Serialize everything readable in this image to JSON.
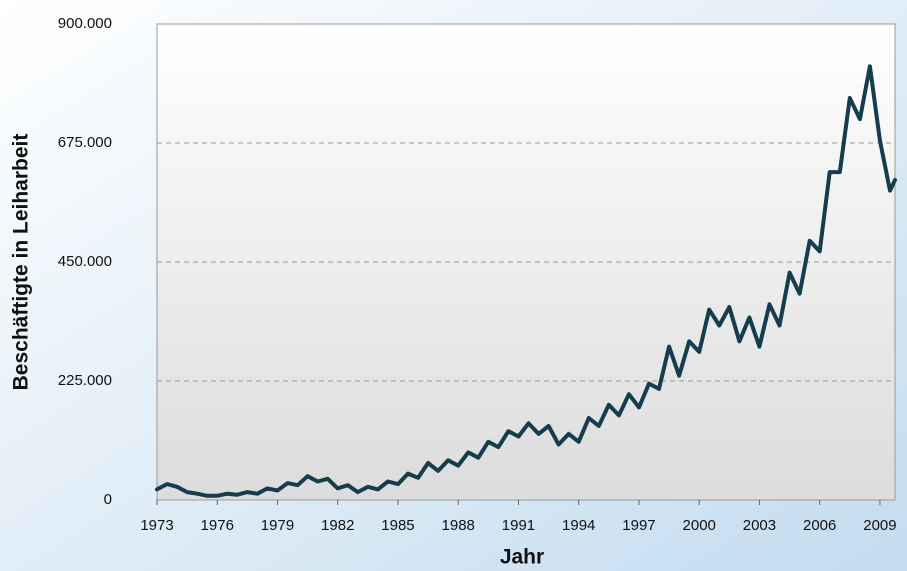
{
  "chart_data": {
    "type": "line",
    "x_label": "Jahr",
    "y_label": "Beschäftigte in Leiharbeit",
    "color": "#163d4d",
    "grid": true,
    "xlim": [
      1973,
      2009.75
    ],
    "xticks": [
      1973,
      1976,
      1979,
      1982,
      1985,
      1988,
      1991,
      1994,
      1997,
      2000,
      2003,
      2006,
      2009
    ],
    "ylim": [
      0,
      900000
    ],
    "yticks": [
      0,
      {
        "value": 225000,
        "label": "225.000"
      },
      {
        "value": 450000,
        "label": "450.000"
      },
      {
        "value": 675000,
        "label": "675.000"
      },
      {
        "value": 900000,
        "label": "900.000"
      }
    ],
    "x": [
      1973.0,
      1973.5,
      1974.0,
      1974.5,
      1975.0,
      1975.5,
      1976.0,
      1976.5,
      1977.0,
      1977.5,
      1978.0,
      1978.5,
      1979.0,
      1979.5,
      1980.0,
      1980.5,
      1981.0,
      1981.5,
      1982.0,
      1982.5,
      1983.0,
      1983.5,
      1984.0,
      1984.5,
      1985.0,
      1985.5,
      1986.0,
      1986.5,
      1987.0,
      1987.5,
      1988.0,
      1988.5,
      1989.0,
      1989.5,
      1990.0,
      1990.5,
      1991.0,
      1991.5,
      1992.0,
      1992.5,
      1993.0,
      1993.5,
      1994.0,
      1994.5,
      1995.0,
      1995.5,
      1996.0,
      1996.5,
      1997.0,
      1997.5,
      1998.0,
      1998.5,
      1999.0,
      1999.5,
      2000.0,
      2000.5,
      2001.0,
      2001.5,
      2002.0,
      2002.5,
      2003.0,
      2003.5,
      2004.0,
      2004.5,
      2005.0,
      2005.5,
      2006.0,
      2006.5,
      2007.0,
      2007.5,
      2008.0,
      2008.5,
      2009.0,
      2009.5,
      2009.75
    ],
    "values": [
      20000,
      30000,
      25000,
      15000,
      12000,
      8000,
      8000,
      12000,
      10000,
      15000,
      12000,
      22000,
      18000,
      32000,
      28000,
      45000,
      35000,
      40000,
      22000,
      28000,
      15000,
      25000,
      20000,
      35000,
      30000,
      50000,
      42000,
      70000,
      55000,
      75000,
      65000,
      90000,
      80000,
      110000,
      100000,
      130000,
      120000,
      145000,
      125000,
      140000,
      105000,
      125000,
      110000,
      155000,
      140000,
      180000,
      160000,
      200000,
      175000,
      220000,
      210000,
      290000,
      235000,
      300000,
      280000,
      360000,
      330000,
      365000,
      300000,
      345000,
      290000,
      370000,
      330000,
      430000,
      390000,
      490000,
      470000,
      620000,
      620000,
      760000,
      720000,
      820000,
      680000,
      585000,
      605000
    ]
  }
}
